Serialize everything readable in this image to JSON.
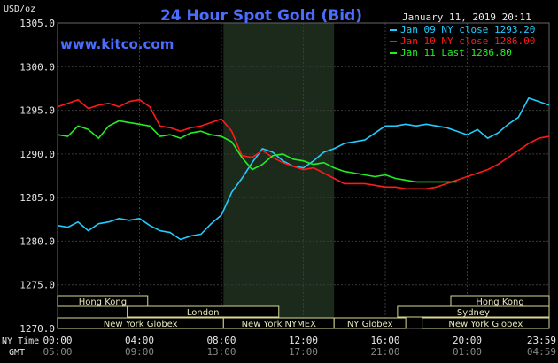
{
  "chart_data": {
    "type": "line",
    "title": "24 Hour Spot Gold (Bid)",
    "date_label": "January 11, 2019 20:11",
    "watermark": "www.kitco.com",
    "ylabel": "USD/oz",
    "ylim": [
      1270,
      1305
    ],
    "yticks": [
      "1305.0",
      "1300.0",
      "1295.0",
      "1290.0",
      "1285.0",
      "1280.0",
      "1275.0",
      "1270.0"
    ],
    "x_range_hours": [
      0,
      24
    ],
    "x_ticks_ny": [
      "00:00",
      "04:00",
      "08:00",
      "12:00",
      "16:00",
      "20:00",
      "23:59"
    ],
    "x_ticks_gmt": [
      "05:00",
      "09:00",
      "13:00",
      "17:00",
      "21:00",
      "01:00",
      "04:59"
    ],
    "row_label_ny": "NY Time",
    "row_label_gmt": "GMT",
    "grid": true,
    "legend_position": "top-right",
    "shaded_session_hours": [
      8.1,
      13.5
    ],
    "sessions": [
      {
        "label": "Hong Kong",
        "start": 0,
        "end": 4.4,
        "row": 0
      },
      {
        "label": "Hong Kong",
        "start": 19.2,
        "end": 24,
        "row": 0
      },
      {
        "label": "London",
        "start": 3.4,
        "end": 10.8,
        "row": 1
      },
      {
        "label": "Sydney",
        "start": 16.6,
        "end": 24,
        "row": 1
      },
      {
        "label": "New York Globex",
        "start": 0,
        "end": 8.1,
        "row": 2
      },
      {
        "label": "New York NYMEX",
        "start": 8.1,
        "end": 13.5,
        "row": 2
      },
      {
        "label": "NY Globex",
        "start": 13.5,
        "end": 17.0,
        "row": 2
      },
      {
        "label": "New York Globex",
        "start": 17.8,
        "end": 24,
        "row": 2
      }
    ],
    "series": [
      {
        "name": "Jan 09 NY close 1293.20",
        "color": "#22ccff",
        "x": [
          0,
          0.5,
          1,
          1.5,
          2,
          2.5,
          3,
          3.5,
          4,
          4.5,
          5,
          5.5,
          6,
          6.5,
          7,
          7.5,
          8,
          8.5,
          9,
          9.5,
          10,
          10.5,
          11,
          11.5,
          12,
          12.5,
          13,
          13.5,
          14,
          14.5,
          15,
          15.5,
          16,
          16.5,
          17,
          17.5,
          18,
          18.5,
          19,
          19.5,
          20,
          20.5,
          21,
          21.5,
          22,
          22.5,
          23,
          23.5,
          24
        ],
        "y": [
          1281.8,
          1281.6,
          1282.2,
          1281.2,
          1282.0,
          1282.2,
          1282.6,
          1282.4,
          1282.6,
          1281.8,
          1281.2,
          1281.0,
          1280.2,
          1280.6,
          1280.8,
          1282.0,
          1283.0,
          1285.6,
          1287.2,
          1289.0,
          1290.6,
          1290.2,
          1289.2,
          1288.6,
          1288.4,
          1289.2,
          1290.2,
          1290.6,
          1291.2,
          1291.4,
          1291.6,
          1292.4,
          1293.2,
          1293.2,
          1293.4,
          1293.2,
          1293.4,
          1293.2,
          1293.0,
          1292.6,
          1292.2,
          1292.8,
          1291.8,
          1292.4,
          1293.4,
          1294.2,
          1296.4,
          1296.0,
          1295.6
        ]
      },
      {
        "name": "Jan 10 NY close 1286.00",
        "color": "#ff1a1a",
        "x": [
          0,
          0.5,
          1,
          1.5,
          2,
          2.5,
          3,
          3.5,
          4,
          4.5,
          5,
          5.5,
          6,
          6.5,
          7,
          7.5,
          8,
          8.5,
          9,
          9.5,
          10,
          10.5,
          11,
          11.5,
          12,
          12.5,
          13,
          13.5,
          14,
          14.5,
          15,
          15.5,
          16,
          16.5,
          17,
          17.5,
          18,
          18.5,
          19,
          19.5,
          20,
          20.5,
          21,
          21.5,
          22,
          22.5,
          23,
          23.5,
          24
        ],
        "y": [
          1295.4,
          1295.8,
          1296.2,
          1295.2,
          1295.6,
          1295.8,
          1295.4,
          1296.0,
          1296.2,
          1295.4,
          1293.2,
          1293.0,
          1292.6,
          1293.0,
          1293.2,
          1293.6,
          1294.0,
          1292.6,
          1289.8,
          1289.6,
          1290.4,
          1289.6,
          1289.0,
          1288.6,
          1288.2,
          1288.4,
          1287.8,
          1287.2,
          1286.6,
          1286.6,
          1286.6,
          1286.4,
          1286.2,
          1286.2,
          1286.0,
          1286.0,
          1286.0,
          1286.2,
          1286.6,
          1287.0,
          1287.4,
          1287.8,
          1288.2,
          1288.8,
          1289.6,
          1290.4,
          1291.2,
          1291.8,
          1292.0
        ]
      },
      {
        "name": "Jan 11 Last 1286.80",
        "color": "#22ee22",
        "x": [
          0,
          0.5,
          1,
          1.5,
          2,
          2.5,
          3,
          3.5,
          4,
          4.5,
          5,
          5.5,
          6,
          6.5,
          7,
          7.5,
          8,
          8.5,
          9,
          9.5,
          10,
          10.5,
          11,
          11.5,
          12,
          12.5,
          13,
          13.5,
          14,
          14.5,
          15,
          15.5,
          16,
          16.5,
          17,
          17.5,
          18,
          18.5,
          19,
          19.5
        ],
        "y": [
          1292.2,
          1292.0,
          1293.2,
          1292.8,
          1291.8,
          1293.2,
          1293.8,
          1293.6,
          1293.4,
          1293.2,
          1292.0,
          1292.2,
          1291.8,
          1292.4,
          1292.6,
          1292.2,
          1292.0,
          1291.4,
          1289.6,
          1288.2,
          1288.8,
          1289.8,
          1290.0,
          1289.4,
          1289.2,
          1288.8,
          1289.0,
          1288.4,
          1288.0,
          1287.8,
          1287.6,
          1287.4,
          1287.6,
          1287.2,
          1287.0,
          1286.8,
          1286.8,
          1286.8,
          1286.8,
          1286.8
        ]
      }
    ]
  }
}
